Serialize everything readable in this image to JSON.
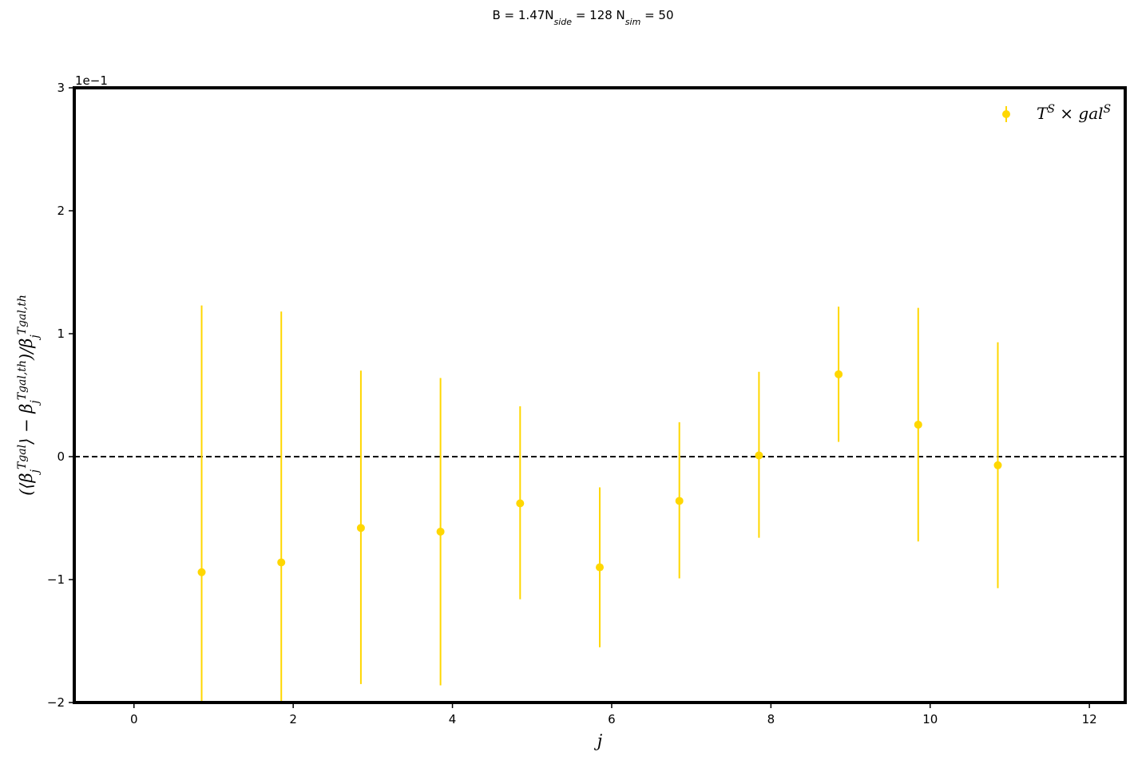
{
  "chart_data": {
    "type": "scatter",
    "title": "B = 1.47N_side = 128 N_sim = 50",
    "xlabel": "j",
    "ylabel": "(⟨β_j^Tgal⟩ − β_j^Tgal,th)/β_j^Tgal,th",
    "offset_text": "1e−1",
    "xlim": [
      -0.75,
      12.45
    ],
    "ylim": [
      -2,
      3
    ],
    "xticks": [
      0,
      2,
      4,
      6,
      8,
      10,
      12
    ],
    "yticks": [
      -2,
      -1,
      0,
      1,
      2,
      3
    ],
    "ytick_labels": [
      "−2",
      "−1",
      "0",
      "1",
      "2",
      "3"
    ],
    "grid": false,
    "legend_position": "top-right",
    "reference_line": {
      "y": 0,
      "style": "dashed",
      "color": "#000000"
    },
    "series": [
      {
        "name": "T^S × gal^S",
        "color": "#FFD700",
        "x": [
          0.85,
          1.85,
          2.85,
          3.85,
          4.85,
          5.85,
          6.85,
          7.85,
          8.85,
          9.85,
          10.85
        ],
        "y": [
          -0.94,
          -0.86,
          -0.58,
          -0.61,
          -0.38,
          -0.9,
          -0.36,
          0.01,
          0.67,
          0.26,
          -0.07
        ],
        "err_low": [
          -2.0,
          -2.0,
          -1.85,
          -1.86,
          -1.16,
          -1.55,
          -0.99,
          -0.66,
          0.12,
          -0.69,
          -1.07
        ],
        "err_high": [
          1.23,
          1.18,
          0.7,
          0.64,
          0.41,
          -0.25,
          0.28,
          0.69,
          1.22,
          1.21,
          0.93
        ]
      }
    ]
  }
}
